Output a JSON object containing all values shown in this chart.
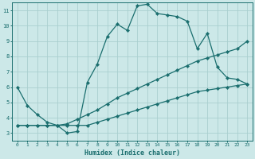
{
  "xlabel": "Humidex (Indice chaleur)",
  "bg_color": "#cce8e8",
  "line_color": "#1a6e6e",
  "grid_color": "#aacfcf",
  "xlim": [
    -0.5,
    23.5
  ],
  "ylim": [
    2.5,
    11.5
  ],
  "xticks": [
    0,
    1,
    2,
    3,
    4,
    5,
    6,
    7,
    8,
    9,
    10,
    11,
    12,
    13,
    14,
    15,
    16,
    17,
    18,
    19,
    20,
    21,
    22,
    23
  ],
  "yticks": [
    3,
    4,
    5,
    6,
    7,
    8,
    9,
    10,
    11
  ],
  "line1_x": [
    0,
    1,
    2,
    3,
    4,
    5,
    6,
    7,
    8,
    9,
    10,
    11,
    12,
    13,
    14,
    15,
    16,
    17,
    18,
    19,
    20,
    21,
    22,
    23
  ],
  "line1_y": [
    6.0,
    4.8,
    4.2,
    3.7,
    3.5,
    3.0,
    3.1,
    6.3,
    7.5,
    9.3,
    10.1,
    9.7,
    11.3,
    11.4,
    10.8,
    10.7,
    10.6,
    10.3,
    8.5,
    9.5,
    7.3,
    6.6,
    6.5,
    6.2
  ],
  "line2_x": [
    0,
    1,
    2,
    3,
    4,
    5,
    6,
    7,
    8,
    9,
    10,
    11,
    12,
    13,
    14,
    15,
    16,
    17,
    18,
    19,
    20,
    21,
    22,
    23
  ],
  "line2_y": [
    3.5,
    3.5,
    3.5,
    3.5,
    3.5,
    3.6,
    3.9,
    4.2,
    4.5,
    4.9,
    5.3,
    5.6,
    5.9,
    6.2,
    6.5,
    6.8,
    7.1,
    7.4,
    7.7,
    7.9,
    8.1,
    8.3,
    8.5,
    9.0
  ],
  "line3_x": [
    0,
    1,
    2,
    3,
    4,
    5,
    6,
    7,
    8,
    9,
    10,
    11,
    12,
    13,
    14,
    15,
    16,
    17,
    18,
    19,
    20,
    21,
    22,
    23
  ],
  "line3_y": [
    3.5,
    3.5,
    3.5,
    3.5,
    3.5,
    3.5,
    3.5,
    3.5,
    3.7,
    3.9,
    4.1,
    4.3,
    4.5,
    4.7,
    4.9,
    5.1,
    5.3,
    5.5,
    5.7,
    5.8,
    5.9,
    6.0,
    6.1,
    6.2
  ]
}
